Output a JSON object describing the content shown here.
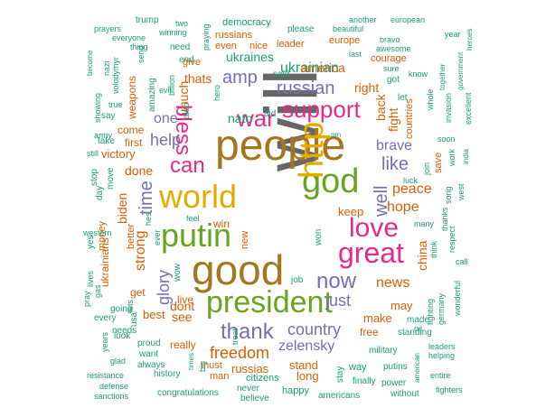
{
  "colors": {
    "teal": "#1b9e77",
    "orange": "#d95f02",
    "purple": "#7570b3",
    "magenta": "#e7298a",
    "green": "#66a61e",
    "gold": "#e6ab02",
    "brown": "#a6761d",
    "gray": "#666666"
  },
  "words": [
    {
      "text": "will",
      "size": 82,
      "color": "gray"
    },
    {
      "text": "people",
      "size": 48,
      "color": "brown"
    },
    {
      "text": "good",
      "size": 46,
      "color": "brown"
    },
    {
      "text": "world",
      "size": 36,
      "color": "gold"
    },
    {
      "text": "god",
      "size": 38,
      "color": "green"
    },
    {
      "text": "http",
      "size": 38,
      "color": "gold"
    },
    {
      "text": "putin",
      "size": 36,
      "color": "green"
    },
    {
      "text": "president",
      "size": 34,
      "color": "green"
    },
    {
      "text": "great",
      "size": 32,
      "color": "magenta"
    },
    {
      "text": "love",
      "size": 30,
      "color": "magenta"
    },
    {
      "text": "support",
      "size": 26,
      "color": "magenta"
    },
    {
      "text": "war",
      "size": 26,
      "color": "magenta"
    },
    {
      "text": "bless",
      "size": 24,
      "color": "magenta"
    },
    {
      "text": "thank",
      "size": 24,
      "color": "purple"
    },
    {
      "text": "can",
      "size": 24,
      "color": "magenta"
    },
    {
      "text": "now",
      "size": 24,
      "color": "purple"
    },
    {
      "text": "russian",
      "size": 20,
      "color": "purple"
    },
    {
      "text": "amp",
      "size": 20,
      "color": "purple"
    },
    {
      "text": "well",
      "size": 20,
      "color": "purple"
    },
    {
      "text": "like",
      "size": 20,
      "color": "purple"
    },
    {
      "text": "time",
      "size": 20,
      "color": "purple"
    },
    {
      "text": "help",
      "size": 18,
      "color": "purple"
    },
    {
      "text": "country",
      "size": 18,
      "color": "purple"
    },
    {
      "text": "freedom",
      "size": 18,
      "color": "orange"
    },
    {
      "text": "just",
      "size": 18,
      "color": "purple"
    },
    {
      "text": "glory",
      "size": 18,
      "color": "purple"
    },
    {
      "text": "strong",
      "size": 16,
      "color": "orange"
    },
    {
      "text": "one",
      "size": 16,
      "color": "purple"
    },
    {
      "text": "news",
      "size": 16,
      "color": "orange"
    },
    {
      "text": "brave",
      "size": 16,
      "color": "purple"
    },
    {
      "text": "peace",
      "size": 16,
      "color": "orange"
    },
    {
      "text": "hope",
      "size": 16,
      "color": "orange"
    },
    {
      "text": "zelensky",
      "size": 16,
      "color": "purple"
    },
    {
      "text": "ukrainian",
      "size": 16,
      "color": "teal"
    },
    {
      "text": "ukraines",
      "size": 14,
      "color": "teal"
    },
    {
      "text": "america",
      "size": 14,
      "color": "orange"
    },
    {
      "text": "china",
      "size": 14,
      "color": "orange"
    },
    {
      "text": "thats",
      "size": 14,
      "color": "orange"
    },
    {
      "text": "dont",
      "size": 14,
      "color": "orange"
    },
    {
      "text": "see",
      "size": 14,
      "color": "orange"
    },
    {
      "text": "done",
      "size": 14,
      "color": "orange"
    },
    {
      "text": "biden",
      "size": 14,
      "color": "orange"
    },
    {
      "text": "nato",
      "size": 14,
      "color": "teal"
    },
    {
      "text": "much",
      "size": 14,
      "color": "orange"
    },
    {
      "text": "right",
      "size": 14,
      "color": "orange"
    },
    {
      "text": "back",
      "size": 14,
      "color": "orange"
    },
    {
      "text": "fight",
      "size": 14,
      "color": "orange"
    },
    {
      "text": "make",
      "size": 13,
      "color": "orange"
    },
    {
      "text": "best",
      "size": 13,
      "color": "orange"
    },
    {
      "text": "russias",
      "size": 13,
      "color": "orange"
    },
    {
      "text": "stand",
      "size": 13,
      "color": "orange"
    },
    {
      "text": "long",
      "size": 13,
      "color": "orange"
    },
    {
      "text": "keep",
      "size": 13,
      "color": "orange"
    },
    {
      "text": "may",
      "size": 13,
      "color": "orange"
    },
    {
      "text": "victory",
      "size": 13,
      "color": "orange"
    },
    {
      "text": "first",
      "size": 12,
      "color": "orange"
    },
    {
      "text": "come",
      "size": 12,
      "color": "orange"
    },
    {
      "text": "ukrainians",
      "size": 12,
      "color": "orange"
    },
    {
      "text": "get",
      "size": 12,
      "color": "orange"
    },
    {
      "text": "live",
      "size": 12,
      "color": "orange"
    },
    {
      "text": "weapons",
      "size": 12,
      "color": "orange"
    },
    {
      "text": "win",
      "size": 12,
      "color": "orange"
    },
    {
      "text": "free",
      "size": 12,
      "color": "orange"
    },
    {
      "text": "really",
      "size": 12,
      "color": "orange"
    },
    {
      "text": "must",
      "size": 11,
      "color": "orange"
    },
    {
      "text": "man",
      "size": 11,
      "color": "orange"
    },
    {
      "text": "give",
      "size": 11,
      "color": "orange"
    },
    {
      "text": "even",
      "size": 11,
      "color": "orange"
    },
    {
      "text": "nice",
      "size": 11,
      "color": "orange"
    },
    {
      "text": "leader",
      "size": 11,
      "color": "orange"
    },
    {
      "text": "courage",
      "size": 11,
      "color": "orange"
    },
    {
      "text": "europe",
      "size": 11,
      "color": "orange"
    },
    {
      "text": "countries",
      "size": 11,
      "color": "orange"
    },
    {
      "text": "save",
      "size": 11,
      "color": "orange"
    },
    {
      "text": "new",
      "size": 11,
      "color": "orange"
    },
    {
      "text": "money",
      "size": 11,
      "color": "orange"
    },
    {
      "text": "better",
      "size": 11,
      "color": "orange"
    },
    {
      "text": "russians",
      "size": 11,
      "color": "orange"
    },
    {
      "text": "democracy",
      "size": 11,
      "color": "teal"
    },
    {
      "text": "stay",
      "size": 10,
      "color": "teal"
    },
    {
      "text": "way",
      "size": 11,
      "color": "teal"
    },
    {
      "text": "happy",
      "size": 11,
      "color": "teal"
    },
    {
      "text": "citizens",
      "size": 11,
      "color": "teal"
    },
    {
      "text": "americans",
      "size": 10,
      "color": "teal"
    },
    {
      "text": "never",
      "size": 10,
      "color": "teal"
    },
    {
      "text": "believe",
      "size": 10,
      "color": "teal"
    },
    {
      "text": "congratulations",
      "size": 10,
      "color": "teal"
    },
    {
      "text": "history",
      "size": 10,
      "color": "teal"
    },
    {
      "text": "proud",
      "size": 10,
      "color": "teal"
    },
    {
      "text": "always",
      "size": 10,
      "color": "teal"
    },
    {
      "text": "want",
      "size": 10,
      "color": "teal"
    },
    {
      "text": "needs",
      "size": 10,
      "color": "teal"
    },
    {
      "text": "going",
      "size": 10,
      "color": "teal"
    },
    {
      "text": "every",
      "size": 10,
      "color": "teal"
    },
    {
      "text": "look",
      "size": 10,
      "color": "teal"
    },
    {
      "text": "made",
      "size": 10,
      "color": "teal"
    },
    {
      "text": "standing",
      "size": 10,
      "color": "teal"
    },
    {
      "text": "military",
      "size": 10,
      "color": "teal"
    },
    {
      "text": "putins",
      "size": 10,
      "color": "teal"
    },
    {
      "text": "finally",
      "size": 10,
      "color": "teal"
    },
    {
      "text": "power",
      "size": 10,
      "color": "teal"
    },
    {
      "text": "without",
      "size": 10,
      "color": "teal"
    },
    {
      "text": "entire",
      "size": 9,
      "color": "teal"
    },
    {
      "text": "fighters",
      "size": 9,
      "color": "teal"
    },
    {
      "text": "leaders",
      "size": 9,
      "color": "teal"
    },
    {
      "text": "helping",
      "size": 9,
      "color": "teal"
    },
    {
      "text": "wonderful",
      "size": 9,
      "color": "teal"
    },
    {
      "text": "fighting",
      "size": 9,
      "color": "teal"
    },
    {
      "text": "germany",
      "size": 9,
      "color": "teal"
    },
    {
      "text": "oil",
      "size": 9,
      "color": "teal"
    },
    {
      "text": "call",
      "size": 9,
      "color": "teal"
    },
    {
      "text": "respect",
      "size": 9,
      "color": "teal"
    },
    {
      "text": "think",
      "size": 9,
      "color": "teal"
    },
    {
      "text": "thanks",
      "size": 9,
      "color": "teal"
    },
    {
      "text": "many",
      "size": 9,
      "color": "teal"
    },
    {
      "text": "song",
      "size": 9,
      "color": "teal"
    },
    {
      "text": "west",
      "size": 9,
      "color": "teal"
    },
    {
      "text": "india",
      "size": 8,
      "color": "teal"
    },
    {
      "text": "work",
      "size": 9,
      "color": "teal"
    },
    {
      "text": "soon",
      "size": 9,
      "color": "teal"
    },
    {
      "text": "excellent",
      "size": 9,
      "color": "teal"
    },
    {
      "text": "invasion",
      "size": 9,
      "color": "teal"
    },
    {
      "text": "whole",
      "size": 9,
      "color": "teal"
    },
    {
      "text": "together",
      "size": 8,
      "color": "teal"
    },
    {
      "text": "government",
      "size": 8,
      "color": "teal"
    },
    {
      "text": "heroes",
      "size": 8,
      "color": "teal"
    },
    {
      "text": "year",
      "size": 9,
      "color": "teal"
    },
    {
      "text": "european",
      "size": 9,
      "color": "teal"
    },
    {
      "text": "another",
      "size": 9,
      "color": "teal"
    },
    {
      "text": "beautiful",
      "size": 9,
      "color": "teal"
    },
    {
      "text": "bravo",
      "size": 9,
      "color": "teal"
    },
    {
      "text": "awesome",
      "size": 9,
      "color": "teal"
    },
    {
      "text": "sure",
      "size": 9,
      "color": "teal"
    },
    {
      "text": "know",
      "size": 9,
      "color": "teal"
    },
    {
      "text": "got",
      "size": 10,
      "color": "teal"
    },
    {
      "text": "last",
      "size": 9,
      "color": "teal"
    },
    {
      "text": "let",
      "size": 10,
      "color": "teal"
    },
    {
      "text": "join",
      "size": 9,
      "color": "teal"
    },
    {
      "text": "luck",
      "size": 9,
      "color": "teal"
    },
    {
      "text": "please",
      "size": 10,
      "color": "teal"
    },
    {
      "text": "said",
      "size": 10,
      "color": "teal"
    },
    {
      "text": "aid",
      "size": 10,
      "color": "teal"
    },
    {
      "text": "hero",
      "size": 9,
      "color": "teal"
    },
    {
      "text": "also",
      "size": 10,
      "color": "teal"
    },
    {
      "text": "evil",
      "size": 9,
      "color": "teal"
    },
    {
      "text": "billion",
      "size": 9,
      "color": "teal"
    },
    {
      "text": "end",
      "size": 10,
      "color": "teal"
    },
    {
      "text": "send",
      "size": 9,
      "color": "teal"
    },
    {
      "text": "amazing",
      "size": 10,
      "color": "teal"
    },
    {
      "text": "thing",
      "size": 9,
      "color": "teal"
    },
    {
      "text": "everyone",
      "size": 9,
      "color": "teal"
    },
    {
      "text": "prayers",
      "size": 9,
      "color": "teal"
    },
    {
      "text": "trump",
      "size": 10,
      "color": "teal"
    },
    {
      "text": "two",
      "size": 9,
      "color": "teal"
    },
    {
      "text": "winning",
      "size": 9,
      "color": "teal"
    },
    {
      "text": "need",
      "size": 10,
      "color": "teal"
    },
    {
      "text": "praying",
      "size": 9,
      "color": "teal"
    },
    {
      "text": "become",
      "size": 8,
      "color": "teal"
    },
    {
      "text": "nazi",
      "size": 9,
      "color": "teal"
    },
    {
      "text": "volodymyr",
      "size": 9,
      "color": "teal"
    },
    {
      "text": "showing",
      "size": 9,
      "color": "teal"
    },
    {
      "text": "true",
      "size": 9,
      "color": "teal"
    },
    {
      "text": "say",
      "size": 10,
      "color": "teal"
    },
    {
      "text": "army",
      "size": 9,
      "color": "teal"
    },
    {
      "text": "take",
      "size": 10,
      "color": "teal"
    },
    {
      "text": "still",
      "size": 9,
      "color": "teal"
    },
    {
      "text": "stop",
      "size": 10,
      "color": "teal"
    },
    {
      "text": "move",
      "size": 10,
      "color": "teal"
    },
    {
      "text": "day",
      "size": 10,
      "color": "teal"
    },
    {
      "text": "yes",
      "size": 10,
      "color": "teal"
    },
    {
      "text": "western",
      "size": 9,
      "color": "teal"
    },
    {
      "text": "hes",
      "size": 9,
      "color": "teal"
    },
    {
      "text": "ever",
      "size": 9,
      "color": "teal"
    },
    {
      "text": "feel",
      "size": 9,
      "color": "teal"
    },
    {
      "text": "wow",
      "size": 10,
      "color": "teal"
    },
    {
      "text": "job",
      "size": 10,
      "color": "teal"
    },
    {
      "text": "won",
      "size": 10,
      "color": "teal"
    },
    {
      "text": "lives",
      "size": 9,
      "color": "teal"
    },
    {
      "text": "gas",
      "size": 9,
      "color": "teal"
    },
    {
      "text": "pray",
      "size": 9,
      "color": "teal"
    },
    {
      "text": "usa",
      "size": 10,
      "color": "teal"
    },
    {
      "text": "lets",
      "size": 9,
      "color": "teal"
    },
    {
      "text": "years",
      "size": 9,
      "color": "teal"
    },
    {
      "text": "glad",
      "size": 9,
      "color": "teal"
    },
    {
      "text": "resistance",
      "size": 9,
      "color": "teal"
    },
    {
      "text": "defense",
      "size": 9,
      "color": "teal"
    },
    {
      "text": "sanctions",
      "size": 9,
      "color": "teal"
    },
    {
      "text": "times",
      "size": 8,
      "color": "teal"
    },
    {
      "text": "big",
      "size": 9,
      "color": "teal"
    },
    {
      "text": "treat",
      "size": 9,
      "color": "teal"
    },
    {
      "text": "american",
      "size": 8,
      "color": "teal"
    },
    {
      "text": "pm",
      "size": 8,
      "color": "teal"
    }
  ]
}
